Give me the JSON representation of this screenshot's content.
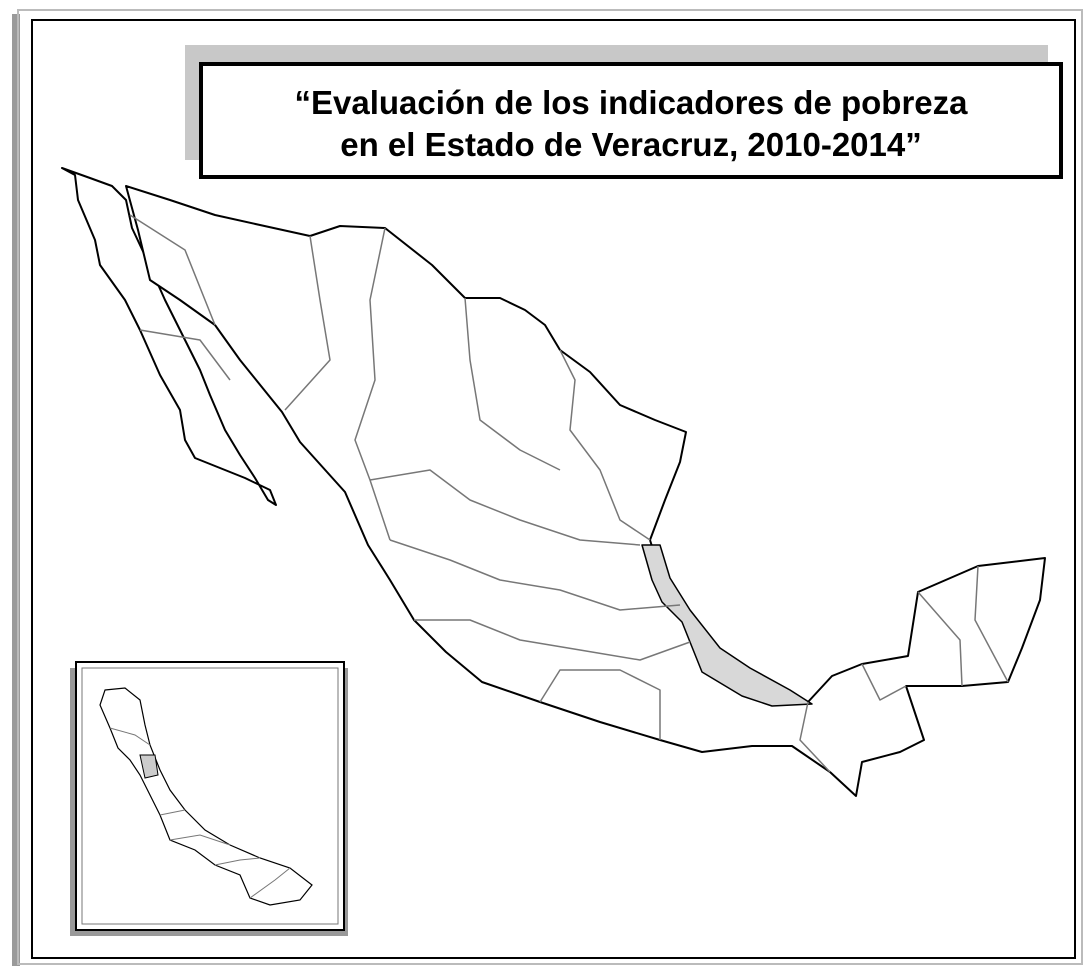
{
  "title_lines": [
    "“Evaluación de los indicadores de pobreza",
    "en el Estado de Veracruz, 2010-2014”"
  ]
}
